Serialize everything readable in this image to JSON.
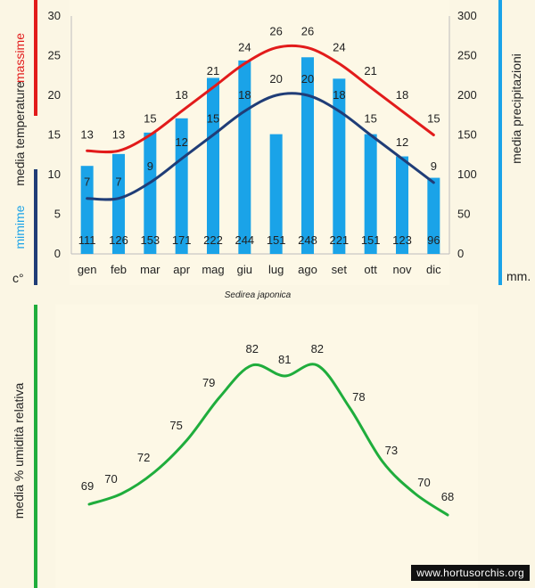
{
  "colors": {
    "max": "#e21b1b",
    "min": "#203d77",
    "precip": "#1aa3e8",
    "humidity": "#1fad3c",
    "axis_line": "#bdbdbd"
  },
  "chart_data": [
    {
      "type": "bar+line",
      "title": "Sedirea japonica",
      "categories": [
        "gen",
        "feb",
        "mar",
        "apr",
        "mag",
        "giu",
        "lug",
        "ago",
        "set",
        "ott",
        "nov",
        "dic"
      ],
      "left_axis": {
        "ylim": [
          0,
          30
        ],
        "ticks": [
          "0",
          "5",
          "10",
          "15",
          "20",
          "25",
          "30"
        ],
        "title_max": "massime",
        "title_mid": "media  temperature",
        "title_min": "mimime",
        "unit": "c°"
      },
      "right_axis": {
        "ylim": [
          0,
          300
        ],
        "ticks": [
          "0",
          "50",
          "100",
          "150",
          "200",
          "250",
          "300"
        ],
        "title": "media  precipitazioni",
        "unit": "mm."
      },
      "series": [
        {
          "name": "media precipitazioni",
          "kind": "bar",
          "axis": "right",
          "values": [
            111,
            126,
            153,
            171,
            222,
            244,
            151,
            248,
            221,
            151,
            123,
            96
          ]
        },
        {
          "name": "massime",
          "kind": "line",
          "axis": "left",
          "values": [
            13,
            13,
            15,
            18,
            21,
            24,
            26,
            26,
            24,
            21,
            18,
            15
          ]
        },
        {
          "name": "minime",
          "kind": "line",
          "axis": "left",
          "values": [
            7,
            7,
            9,
            12,
            15,
            18,
            20,
            20,
            18,
            15,
            12,
            9
          ]
        }
      ]
    },
    {
      "type": "line",
      "ylabel": "media % umidità relativa",
      "series": [
        {
          "name": "media % umidità relativa",
          "values": [
            69,
            70,
            72,
            75,
            79,
            82,
            81,
            82,
            78,
            73,
            70,
            68
          ]
        }
      ]
    }
  ],
  "watermark": "www.hortusorchis.org"
}
